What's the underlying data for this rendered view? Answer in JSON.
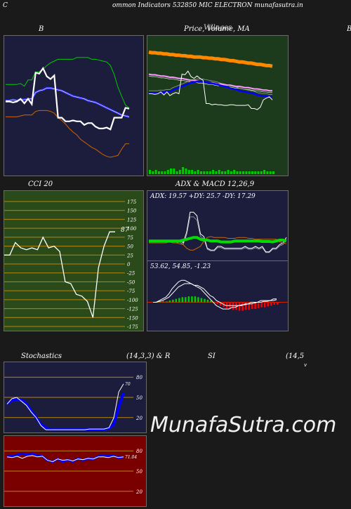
{
  "header": {
    "left_mark": "C",
    "title": "ommon  Indicators 532850  MIC ELECTRON  munafasutra.in"
  },
  "watermark": "MunafaSutra.com",
  "panels": {
    "bb": {
      "title": "B",
      "bg": "#1c1c3c"
    },
    "price": {
      "title": "Price,  Volume,  MA",
      "overlap_title": "Villages",
      "right_mark": "B",
      "bg": "#1c3a1c"
    },
    "cci": {
      "title": "CCI 20",
      "value_label": "87",
      "bg": "#2a4a1a"
    },
    "adx": {
      "title": "ADX  & MACD 12,26,9",
      "adx_label": "ADX: 19.57  +DY: 25.7 -DY: 17.29",
      "macd_label": "53.62,  54.85,  -1.23",
      "bg": "#1c1c3c"
    },
    "stoch": {
      "title_left": "Stochastics",
      "title_mid": "(14,3,3) & R",
      "title_si": "SI",
      "title_right": "(14,5",
      "title_tail": "v",
      "value_label": "70",
      "bg": "#1c1c3c"
    },
    "rsi": {
      "value_label": "71.04",
      "bg": "#7a0000"
    }
  },
  "chart_data": [
    {
      "type": "line",
      "name": "bollinger",
      "series": [
        {
          "role": "close",
          "color": "#ffffff",
          "values": [
            2.3,
            2.3,
            2.29,
            2.3,
            2.33,
            2.28,
            2.33,
            2.27,
            2.62,
            2.61,
            2.67,
            2.58,
            2.55,
            2.59,
            2.12,
            2.12,
            2.08,
            2.08,
            2.09,
            2.08,
            2.08,
            2.04,
            2.06,
            2.06,
            2.02,
            2.0,
            2.0,
            2.01,
            1.99,
            2.12,
            2.12,
            2.12,
            2.23,
            2.22
          ]
        },
        {
          "role": "upper",
          "color": "#00cc00",
          "values": [
            2.49,
            2.49,
            2.49,
            2.49,
            2.5,
            2.47,
            2.54,
            2.54,
            2.63,
            2.63,
            2.66,
            2.7,
            2.73,
            2.75,
            2.77,
            2.77,
            2.77,
            2.77,
            2.77,
            2.79,
            2.79,
            2.79,
            2.79,
            2.77,
            2.77,
            2.76,
            2.75,
            2.74,
            2.7,
            2.6,
            2.46,
            2.36,
            2.26,
            2.23
          ]
        },
        {
          "role": "middle",
          "color": "#3333ff",
          "values": [
            2.31,
            2.31,
            2.32,
            2.31,
            2.32,
            2.32,
            2.33,
            2.33,
            2.4,
            2.42,
            2.43,
            2.45,
            2.45,
            2.44,
            2.43,
            2.42,
            2.4,
            2.38,
            2.36,
            2.35,
            2.34,
            2.33,
            2.31,
            2.3,
            2.29,
            2.27,
            2.25,
            2.23,
            2.21,
            2.19,
            2.17,
            2.15,
            2.14,
            2.13
          ]
        },
        {
          "role": "lower",
          "color": "#cc6600",
          "values": [
            2.13,
            2.13,
            2.13,
            2.13,
            2.14,
            2.15,
            2.15,
            2.15,
            2.19,
            2.2,
            2.2,
            2.2,
            2.19,
            2.17,
            2.12,
            2.09,
            2.05,
            2.0,
            1.96,
            1.93,
            1.88,
            1.85,
            1.82,
            1.79,
            1.77,
            1.74,
            1.71,
            1.69,
            1.68,
            1.69,
            1.7,
            1.77,
            1.83,
            1.83
          ]
        }
      ]
    },
    {
      "type": "line",
      "name": "price-volume-ma",
      "series": [
        {
          "role": "ma-long",
          "color": "#ff8800",
          "values": [
            2.98,
            2.97,
            2.97,
            2.96,
            2.96,
            2.95,
            2.95,
            2.94,
            2.94,
            2.93,
            2.93,
            2.92,
            2.92,
            2.91,
            2.91,
            2.9,
            2.9,
            2.9,
            2.89,
            2.89,
            2.88,
            2.88,
            2.87,
            2.87,
            2.86,
            2.86,
            2.85,
            2.84,
            2.84,
            2.83,
            2.82,
            2.82,
            2.81,
            2.8,
            2.8,
            2.79,
            2.78,
            2.78,
            2.77,
            2.76,
            2.76,
            2.75
          ]
        },
        {
          "role": "ma-mid",
          "color": "#ff99ff",
          "values": [
            2.62,
            2.61,
            2.61,
            2.6,
            2.59,
            2.59,
            2.58,
            2.57,
            2.57,
            2.56,
            2.55,
            2.55,
            2.54,
            2.53,
            2.52,
            2.52,
            2.51,
            2.5,
            2.5,
            2.49,
            2.48,
            2.48,
            2.47,
            2.46,
            2.46,
            2.45,
            2.44,
            2.44,
            2.43,
            2.42,
            2.42,
            2.41,
            2.4,
            2.4,
            2.39,
            2.38,
            2.38,
            2.37,
            2.36,
            2.36,
            2.35,
            2.35
          ]
        },
        {
          "role": "ma-short",
          "color": "#0000ff",
          "values": [
            2.31,
            2.31,
            2.31,
            2.31,
            2.32,
            2.32,
            2.33,
            2.33,
            2.36,
            2.38,
            2.4,
            2.42,
            2.44,
            2.46,
            2.48,
            2.49,
            2.5,
            2.5,
            2.5,
            2.49,
            2.48,
            2.47,
            2.46,
            2.45,
            2.43,
            2.42,
            2.41,
            2.39,
            2.38,
            2.37,
            2.35,
            2.34,
            2.33,
            2.32,
            2.31,
            2.3,
            2.28,
            2.27,
            2.26,
            2.26,
            2.25,
            2.25
          ]
        },
        {
          "role": "close",
          "color": "#ffffff",
          "values": [
            2.3,
            2.3,
            2.29,
            2.3,
            2.33,
            2.28,
            2.33,
            2.27,
            2.3,
            2.32,
            2.3,
            2.62,
            2.61,
            2.67,
            2.58,
            2.55,
            2.59,
            2.55,
            2.52,
            2.14,
            2.14,
            2.12,
            2.13,
            2.12,
            2.12,
            2.11,
            2.11,
            2.12,
            2.12,
            2.11,
            2.11,
            2.11,
            2.11,
            2.12,
            2.06,
            2.06,
            2.04,
            2.08,
            2.2,
            2.23,
            2.25,
            2.2
          ]
        },
        {
          "role": "volume",
          "color": "#00cc00",
          "values": [
            0.3,
            0.2,
            0.3,
            0.2,
            0.2,
            0.2,
            0.3,
            0.4,
            0.4,
            0.2,
            0.3,
            0.5,
            0.4,
            0.3,
            0.3,
            0.2,
            0.3,
            0.2,
            0.2,
            0.2,
            0.2,
            0.3,
            0.2,
            0.3,
            0.2,
            0.2,
            0.3,
            0.2,
            0.3,
            0.2,
            0.2,
            0.2,
            0.2,
            0.2,
            0.2,
            0.2,
            0.2,
            0.2,
            0.3,
            0.2,
            0.2,
            0.2
          ]
        }
      ]
    },
    {
      "type": "line",
      "name": "cci",
      "title": "CCI 20",
      "ylim": [
        -175,
        175
      ],
      "ticks": [
        175,
        150,
        125,
        100,
        75,
        50,
        25,
        0,
        -25,
        -50,
        -75,
        -100,
        -125,
        -150,
        -175
      ],
      "series": [
        {
          "role": "cci",
          "color": "#ffffff",
          "values": [
            25,
            25,
            60,
            45,
            40,
            45,
            40,
            75,
            45,
            50,
            35,
            -50,
            -55,
            -85,
            -90,
            -105,
            -150,
            -10,
            50,
            90,
            90
          ]
        }
      ]
    },
    {
      "type": "line",
      "name": "adx",
      "series": [
        {
          "role": "adx",
          "color": "#00dd00",
          "values": [
            20,
            20,
            20,
            20,
            20,
            20,
            20,
            20,
            20,
            20,
            21,
            22,
            23,
            24,
            24,
            22,
            21,
            21,
            20,
            20,
            20,
            19,
            19,
            19,
            19,
            20,
            20,
            20,
            20,
            20,
            20,
            20,
            20,
            19.5,
            19.5,
            19.5,
            19,
            20,
            21,
            21,
            20
          ]
        },
        {
          "role": "plus-di",
          "color": "#ffffff",
          "values": [
            20,
            20,
            20,
            20,
            20,
            20,
            21,
            20,
            20,
            21,
            18,
            30,
            52,
            52,
            48,
            28,
            25,
            12,
            10,
            10,
            14,
            14,
            12,
            12,
            12,
            12,
            12,
            12,
            14,
            12,
            12,
            14,
            12,
            14,
            8,
            8,
            12,
            12,
            16,
            18,
            24
          ]
        },
        {
          "role": "minus-di",
          "color": "#cc6600",
          "values": [
            18,
            18,
            18,
            18,
            18,
            18,
            19,
            18,
            18,
            17,
            16,
            12,
            10,
            10,
            12,
            14,
            20,
            24,
            25,
            24,
            24,
            24,
            24,
            23,
            23,
            23,
            24,
            24,
            24,
            23,
            23,
            22,
            22,
            22,
            22,
            22,
            22,
            22,
            19,
            18,
            17
          ]
        }
      ]
    },
    {
      "type": "bar",
      "name": "macd",
      "series": [
        {
          "role": "histogram",
          "values": [
            0,
            0,
            0.5,
            0.5,
            0.5,
            1,
            1.5,
            2,
            2.5,
            3,
            3,
            3.5,
            3.5,
            3.5,
            3,
            2.5,
            2,
            1.5,
            1,
            0,
            -1,
            -2,
            -3,
            -3.5,
            -4,
            -4.5,
            -4.5,
            -5,
            -5,
            -4.5,
            -4.5,
            -4,
            -4,
            -3.5,
            -3,
            -3,
            -2.5,
            -2,
            -1.5,
            -1.5
          ]
        },
        {
          "role": "macd",
          "color": "#ffffff",
          "values": [
            0,
            0,
            1,
            2,
            3,
            5,
            8,
            10,
            12,
            13,
            13,
            12,
            11,
            10,
            9,
            8,
            6,
            4,
            2,
            0,
            -2,
            -3,
            -4,
            -4,
            -4,
            -3,
            -3,
            -2,
            -2,
            -1,
            -1,
            0,
            0,
            0,
            1,
            1,
            1,
            1,
            2,
            2
          ]
        },
        {
          "role": "signal",
          "color": "#ffffff",
          "values": [
            0,
            0,
            0.5,
            1,
            2,
            3,
            5,
            7,
            9,
            10,
            11,
            11,
            11,
            10,
            10,
            9,
            8,
            6,
            4,
            3,
            1,
            0,
            -1,
            -2,
            -2,
            -2,
            -2,
            -2,
            -1.5,
            -1.5,
            -1,
            -1,
            -0.5,
            0,
            0,
            0.5,
            0.5,
            1,
            1,
            1.5
          ]
        }
      ]
    },
    {
      "type": "line",
      "name": "stochastics",
      "ylim": [
        0,
        100
      ],
      "ticks": [
        80,
        50,
        20
      ],
      "series": [
        {
          "role": "k",
          "color": "#ffffff",
          "values": [
            40,
            48,
            50,
            44,
            38,
            28,
            20,
            8,
            2,
            2,
            2,
            2,
            2,
            2,
            2,
            2,
            2,
            3,
            3,
            3,
            3,
            5,
            20,
            58,
            70
          ]
        },
        {
          "role": "d",
          "color": "#0000ff",
          "values": [
            40,
            46,
            47,
            46,
            40,
            30,
            20,
            10,
            5,
            2,
            2,
            2,
            2,
            2,
            2,
            2,
            2,
            2,
            3,
            3,
            3,
            4,
            10,
            35,
            57
          ]
        }
      ]
    },
    {
      "type": "line",
      "name": "rsi",
      "ylim": [
        0,
        100
      ],
      "ticks": [
        80,
        50,
        20
      ],
      "series": [
        {
          "role": "rsi",
          "color": "#ffffff",
          "values": [
            71,
            70,
            72,
            69,
            72,
            73,
            71,
            72,
            66,
            64,
            68,
            66,
            67,
            65,
            68,
            67,
            69,
            68,
            71,
            71,
            70,
            72,
            70,
            71
          ]
        },
        {
          "role": "rsi-ma",
          "color": "#0000ff",
          "values": [
            72,
            72,
            74,
            76,
            74,
            76,
            73,
            72,
            66,
            64,
            68,
            64,
            67,
            64,
            69,
            66,
            69,
            68,
            72,
            74,
            72,
            73,
            70,
            71
          ]
        }
      ]
    }
  ]
}
